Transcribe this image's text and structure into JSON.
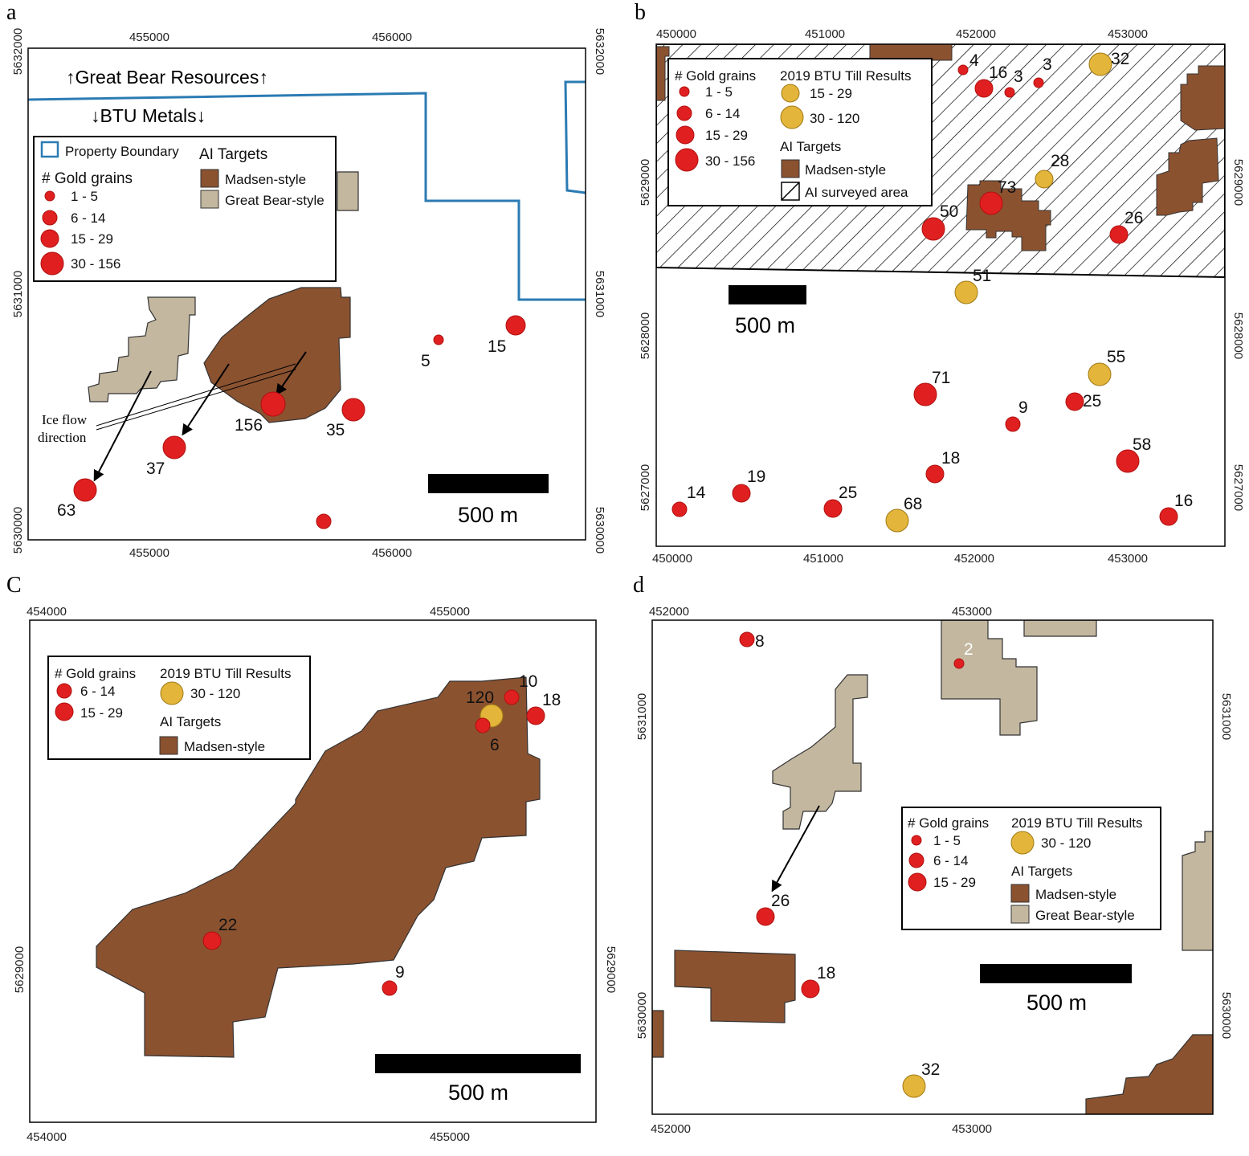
{
  "colors": {
    "madsen": "#8b5230",
    "great_bear": "#c3b7a0",
    "gold_grain": "#e02020",
    "till": "#e3b53a",
    "boundary": "#2b7bb3"
  },
  "panels": {
    "a": {
      "label": "a",
      "x_ticks_top": [
        "455000",
        "456000"
      ],
      "x_ticks_bottom": [
        "455000",
        "456000"
      ],
      "y_ticks_left": [
        "5632000",
        "5631000",
        "5630000"
      ],
      "y_ticks_right": [
        "5632000",
        "5631000",
        "5630000"
      ],
      "great_bear_label": "↑Great Bear Resources↑",
      "btu_label": "↓BTU Metals↓",
      "ice_flow_label_1": "Ice flow",
      "ice_flow_label_2": "direction",
      "scale_label": "500 m",
      "legend": {
        "property_boundary": "Property Boundary",
        "gold_title": "# Gold grains",
        "gold_classes": [
          "1 - 5",
          "6 - 14",
          "15 - 29",
          "30 - 156"
        ],
        "ai_title": "AI Targets",
        "madsen": "Madsen-style",
        "great_bear": "Great Bear-style"
      },
      "samples": [
        "156",
        "35",
        "37",
        "63",
        "5",
        "15"
      ]
    },
    "b": {
      "label": "b",
      "x_ticks_top": [
        "450000",
        "451000",
        "452000",
        "453000"
      ],
      "x_ticks_bottom": [
        "450000",
        "451000",
        "452000",
        "453000"
      ],
      "y_ticks_left": [
        "5629000",
        "5628000",
        "5627000"
      ],
      "y_ticks_right": [
        "5629000",
        "5628000",
        "5627000"
      ],
      "scale_label": "500 m",
      "legend": {
        "gold_title": "# Gold grains",
        "gold_classes": [
          "1 - 5",
          "6 - 14",
          "15 - 29",
          "30 - 156"
        ],
        "till_title": "2019 BTU Till Results",
        "till_classes": [
          "15 - 29",
          "30 - 120"
        ],
        "ai_title": "AI Targets",
        "madsen": "Madsen-style",
        "surveyed": "AI surveyed area"
      },
      "samples": [
        "4",
        "16",
        "3",
        "3",
        "32",
        "28",
        "73",
        "50",
        "26",
        "51",
        "71",
        "9",
        "55",
        "25",
        "58",
        "18",
        "19",
        "14",
        "25",
        "68",
        "16"
      ]
    },
    "c": {
      "label": "C",
      "x_ticks_top": [
        "454000",
        "455000"
      ],
      "x_ticks_bottom": [
        "454000",
        "455000"
      ],
      "y_ticks_left": [
        "5629000"
      ],
      "y_ticks_right": [
        "5629000"
      ],
      "scale_label": "500 m",
      "legend": {
        "gold_title": "# Gold grains",
        "gold_classes": [
          "6 - 14",
          "15 - 29"
        ],
        "till_title": "2019 BTU Till Results",
        "till_classes": [
          "30 - 120"
        ],
        "ai_title": "AI Targets",
        "madsen": "Madsen-style"
      },
      "samples": [
        "10",
        "120",
        "18",
        "6",
        "22",
        "9"
      ]
    },
    "d": {
      "label": "d",
      "x_ticks_top": [
        "452000",
        "453000"
      ],
      "x_ticks_bottom": [
        "452000",
        "453000"
      ],
      "y_ticks_left": [
        "5631000",
        "5630000"
      ],
      "y_ticks_right": [
        "5631000",
        "5630000"
      ],
      "scale_label": "500 m",
      "legend": {
        "gold_title": "# Gold grains",
        "gold_classes": [
          "1 - 5",
          "6 - 14",
          "15 - 29"
        ],
        "till_title": "2019 BTU Till Results",
        "till_classes": [
          "30 - 120"
        ],
        "ai_title": "AI Targets",
        "madsen": "Madsen-style",
        "great_bear": "Great Bear-style"
      },
      "samples": [
        "8",
        "2",
        "26",
        "18",
        "32"
      ]
    }
  }
}
